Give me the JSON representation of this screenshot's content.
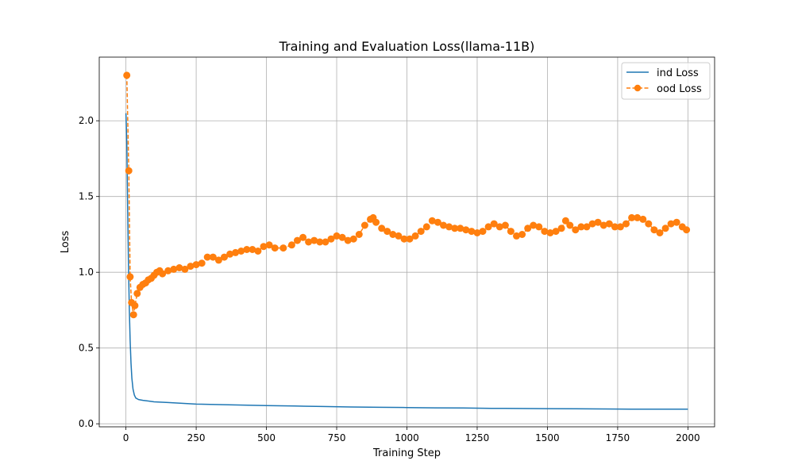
{
  "chart_data": {
    "type": "line",
    "title": "Training and Evaluation Loss(llama-11B)",
    "xlabel": "Training Step",
    "ylabel": "Loss",
    "xlim": [
      -95,
      2095
    ],
    "ylim": [
      -0.02,
      2.42
    ],
    "xticks": [
      0,
      250,
      500,
      750,
      1000,
      1250,
      1500,
      1750,
      2000
    ],
    "xtick_labels": [
      "0",
      "250",
      "500",
      "750",
      "1000",
      "1250",
      "1500",
      "1750",
      "2000"
    ],
    "yticks": [
      0.0,
      0.5,
      1.0,
      1.5,
      2.0
    ],
    "ytick_labels": [
      "0.0",
      "0.5",
      "1.0",
      "1.5",
      "2.0"
    ],
    "grid": true,
    "legend_position": "top-right",
    "series": [
      {
        "name": "ind Loss",
        "color": "#1f77b4",
        "style": "solid",
        "marker": "none",
        "points": [
          [
            0,
            2.05
          ],
          [
            3,
            1.85
          ],
          [
            6,
            1.45
          ],
          [
            9,
            1.05
          ],
          [
            12,
            0.75
          ],
          [
            15,
            0.55
          ],
          [
            18,
            0.4
          ],
          [
            21,
            0.3
          ],
          [
            25,
            0.23
          ],
          [
            30,
            0.19
          ],
          [
            35,
            0.17
          ],
          [
            45,
            0.16
          ],
          [
            60,
            0.155
          ],
          [
            80,
            0.15
          ],
          [
            100,
            0.145
          ],
          [
            150,
            0.14
          ],
          [
            200,
            0.135
          ],
          [
            250,
            0.13
          ],
          [
            300,
            0.128
          ],
          [
            400,
            0.124
          ],
          [
            500,
            0.12
          ],
          [
            600,
            0.117
          ],
          [
            700,
            0.114
          ],
          [
            800,
            0.111
          ],
          [
            900,
            0.109
          ],
          [
            1000,
            0.107
          ],
          [
            1100,
            0.105
          ],
          [
            1200,
            0.104
          ],
          [
            1300,
            0.102
          ],
          [
            1400,
            0.101
          ],
          [
            1500,
            0.1
          ],
          [
            1600,
            0.099
          ],
          [
            1700,
            0.098
          ],
          [
            1800,
            0.097
          ],
          [
            1900,
            0.097
          ],
          [
            2000,
            0.096
          ]
        ]
      },
      {
        "name": "ood Loss",
        "color": "#ff7f0e",
        "style": "dashed",
        "marker": "circle",
        "points": [
          [
            3,
            2.3
          ],
          [
            10,
            1.67
          ],
          [
            15,
            0.97
          ],
          [
            20,
            0.8
          ],
          [
            27,
            0.72
          ],
          [
            32,
            0.78
          ],
          [
            40,
            0.86
          ],
          [
            50,
            0.9
          ],
          [
            60,
            0.92
          ],
          [
            70,
            0.93
          ],
          [
            80,
            0.95
          ],
          [
            90,
            0.96
          ],
          [
            100,
            0.98
          ],
          [
            110,
            1.0
          ],
          [
            120,
            1.01
          ],
          [
            130,
            0.99
          ],
          [
            150,
            1.01
          ],
          [
            170,
            1.02
          ],
          [
            190,
            1.03
          ],
          [
            210,
            1.02
          ],
          [
            230,
            1.04
          ],
          [
            250,
            1.05
          ],
          [
            270,
            1.06
          ],
          [
            290,
            1.1
          ],
          [
            310,
            1.1
          ],
          [
            330,
            1.08
          ],
          [
            350,
            1.1
          ],
          [
            370,
            1.12
          ],
          [
            390,
            1.13
          ],
          [
            410,
            1.14
          ],
          [
            430,
            1.15
          ],
          [
            450,
            1.15
          ],
          [
            470,
            1.14
          ],
          [
            490,
            1.17
          ],
          [
            510,
            1.18
          ],
          [
            530,
            1.16
          ],
          [
            560,
            1.16
          ],
          [
            590,
            1.18
          ],
          [
            610,
            1.21
          ],
          [
            630,
            1.23
          ],
          [
            650,
            1.2
          ],
          [
            670,
            1.21
          ],
          [
            690,
            1.2
          ],
          [
            710,
            1.2
          ],
          [
            730,
            1.22
          ],
          [
            750,
            1.24
          ],
          [
            770,
            1.23
          ],
          [
            790,
            1.21
          ],
          [
            810,
            1.22
          ],
          [
            830,
            1.25
          ],
          [
            850,
            1.31
          ],
          [
            870,
            1.35
          ],
          [
            880,
            1.36
          ],
          [
            890,
            1.33
          ],
          [
            910,
            1.29
          ],
          [
            930,
            1.27
          ],
          [
            950,
            1.25
          ],
          [
            970,
            1.24
          ],
          [
            990,
            1.22
          ],
          [
            1010,
            1.22
          ],
          [
            1030,
            1.24
          ],
          [
            1050,
            1.27
          ],
          [
            1070,
            1.3
          ],
          [
            1090,
            1.34
          ],
          [
            1110,
            1.33
          ],
          [
            1130,
            1.31
          ],
          [
            1150,
            1.3
          ],
          [
            1170,
            1.29
          ],
          [
            1190,
            1.29
          ],
          [
            1210,
            1.28
          ],
          [
            1230,
            1.27
          ],
          [
            1250,
            1.26
          ],
          [
            1270,
            1.27
          ],
          [
            1290,
            1.3
          ],
          [
            1310,
            1.32
          ],
          [
            1330,
            1.3
          ],
          [
            1350,
            1.31
          ],
          [
            1370,
            1.27
          ],
          [
            1390,
            1.24
          ],
          [
            1410,
            1.25
          ],
          [
            1430,
            1.29
          ],
          [
            1450,
            1.31
          ],
          [
            1470,
            1.3
          ],
          [
            1490,
            1.27
          ],
          [
            1510,
            1.26
          ],
          [
            1530,
            1.27
          ],
          [
            1550,
            1.29
          ],
          [
            1565,
            1.34
          ],
          [
            1580,
            1.31
          ],
          [
            1600,
            1.28
          ],
          [
            1620,
            1.3
          ],
          [
            1640,
            1.3
          ],
          [
            1660,
            1.32
          ],
          [
            1680,
            1.33
          ],
          [
            1700,
            1.31
          ],
          [
            1720,
            1.32
          ],
          [
            1740,
            1.3
          ],
          [
            1760,
            1.3
          ],
          [
            1780,
            1.32
          ],
          [
            1800,
            1.36
          ],
          [
            1820,
            1.36
          ],
          [
            1840,
            1.35
          ],
          [
            1860,
            1.32
          ],
          [
            1880,
            1.28
          ],
          [
            1900,
            1.26
          ],
          [
            1920,
            1.29
          ],
          [
            1940,
            1.32
          ],
          [
            1960,
            1.33
          ],
          [
            1980,
            1.3
          ],
          [
            1995,
            1.28
          ]
        ]
      }
    ]
  }
}
